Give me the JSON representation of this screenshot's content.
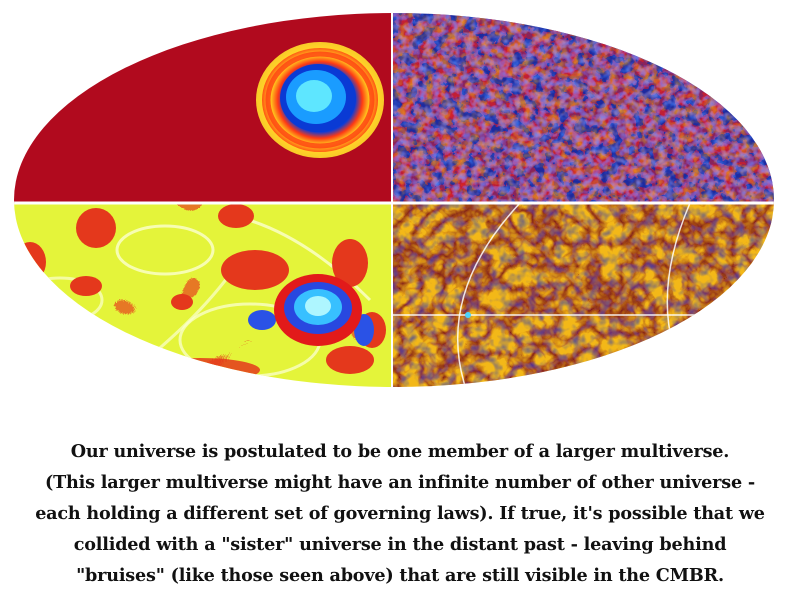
{
  "caption": {
    "lines": [
      "Our universe is postulated to be one member of a larger multiverse.",
      "(This larger multiverse might have an infinite number of other universe -",
      "each holding a different set of governing laws). If true, it's possible that we",
      "collided with a \"sister\" universe in the distant past - leaving behind",
      "\"bruises\" (like those seen above) that are still visible in the CMBR."
    ]
  },
  "sky_maps": {
    "projection": "mollweide",
    "panels": [
      {
        "quadrant": "top-left",
        "style": "smooth bubble collision",
        "colors": [
          "#b10a1e",
          "#f0d020",
          "#ff4a10",
          "#1ca0ff",
          "#0c3cd8"
        ]
      },
      {
        "quadrant": "top-right",
        "style": "noisy cmb",
        "colors": [
          "#1a2a9c",
          "#d21e28",
          "#f0a020",
          "#3a7af0"
        ]
      },
      {
        "quadrant": "bottom-left",
        "style": "filtered bubble collision",
        "colors": [
          "#e4f43a",
          "#e51e1e",
          "#2e6ee8",
          "#6ae8ff"
        ]
      },
      {
        "quadrant": "bottom-right",
        "style": "filtered cmb with gridlines",
        "colors": [
          "#f0b416",
          "#8e1a1a",
          "#2a3aa8",
          "#ffffff"
        ]
      }
    ]
  }
}
